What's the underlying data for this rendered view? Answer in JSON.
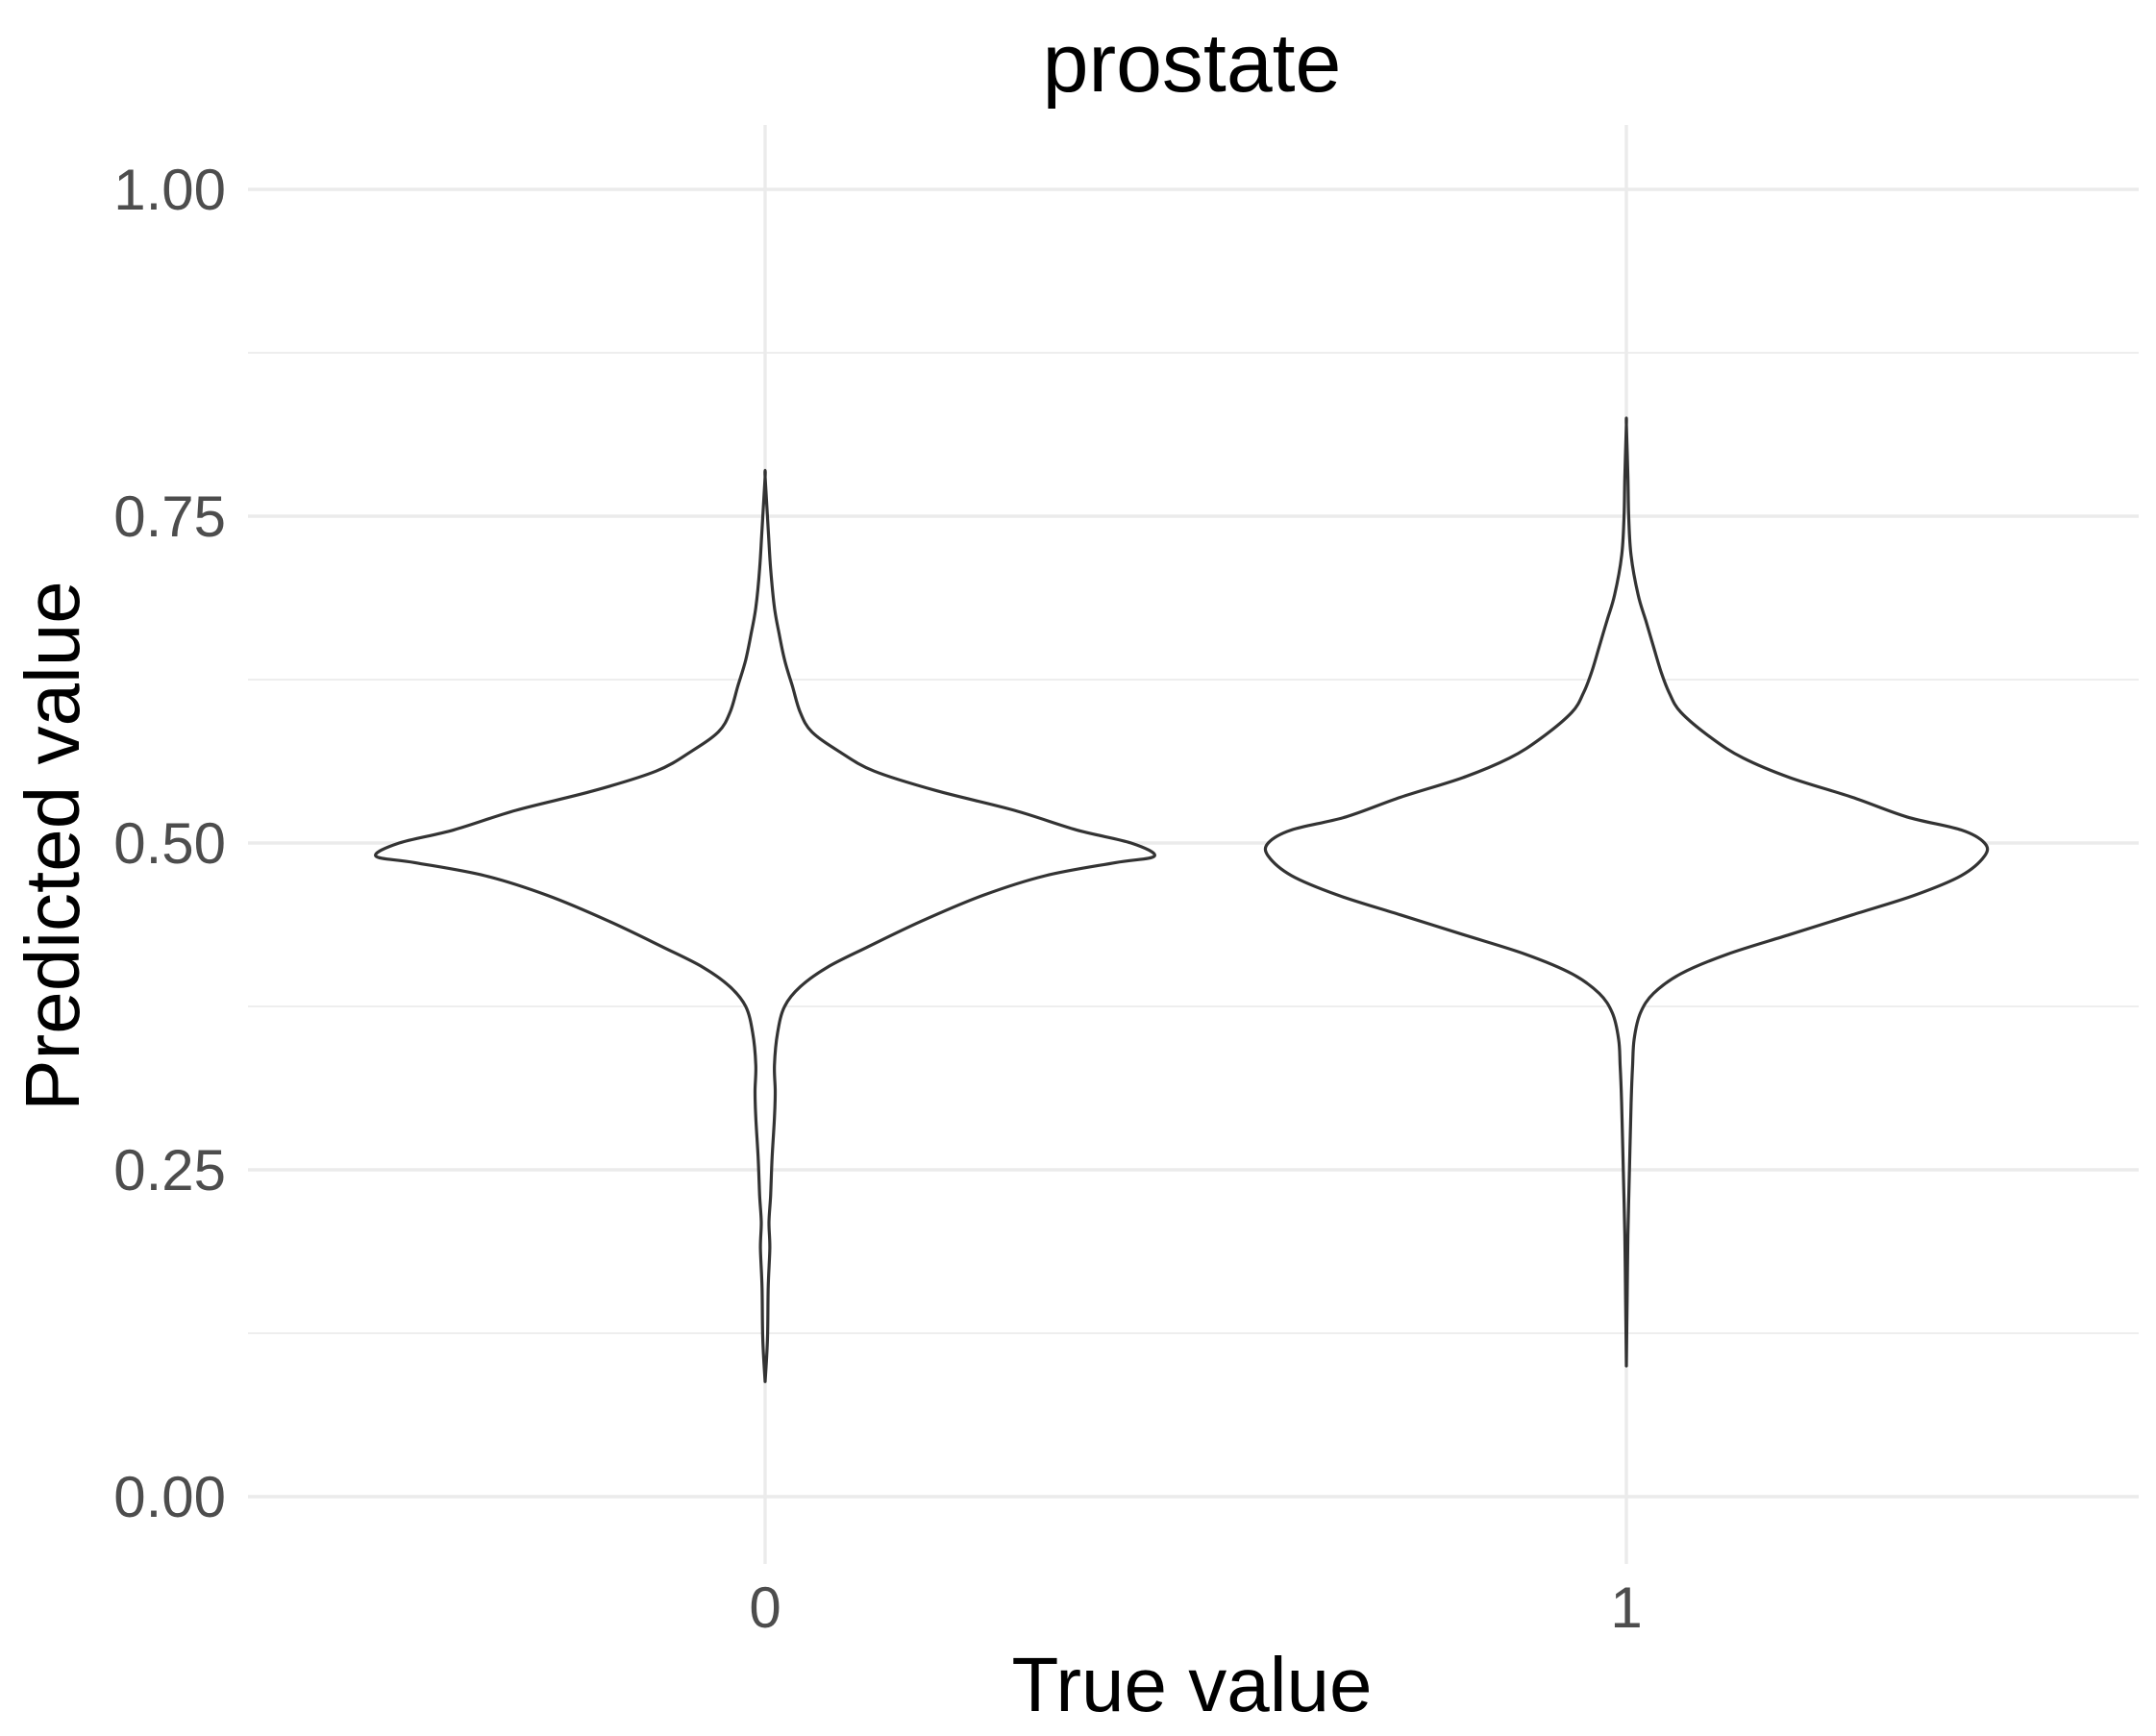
{
  "chart_data": {
    "type": "violin",
    "title": "prostate",
    "xlabel": "True value",
    "ylabel": "Predicted value",
    "categories": [
      "0",
      "1"
    ],
    "ylim": [
      -0.05,
      1.05
    ],
    "y_ticks": [
      0.0,
      0.25,
      0.5,
      0.75,
      1.0
    ],
    "y_tick_labels": [
      "0.00",
      "0.25",
      "0.50",
      "0.75",
      "1.00"
    ],
    "y_minor_ticks": [
      0.125,
      0.375,
      0.625,
      0.875
    ],
    "grid": true,
    "legend": "none",
    "colors": {
      "violin_outline": "#333333",
      "violin_fill": "#ffffff",
      "grid": "#ebebeb",
      "tick_label": "#4d4d4d"
    },
    "series": [
      {
        "category": "0",
        "min": 0.088,
        "max": 0.78,
        "density_profile": [
          [
            0.088,
            0.0
          ],
          [
            0.12,
            0.003
          ],
          [
            0.16,
            0.004
          ],
          [
            0.19,
            0.006
          ],
          [
            0.21,
            0.005
          ],
          [
            0.23,
            0.007
          ],
          [
            0.26,
            0.009
          ],
          [
            0.29,
            0.012
          ],
          [
            0.31,
            0.013
          ],
          [
            0.33,
            0.012
          ],
          [
            0.355,
            0.016
          ],
          [
            0.375,
            0.025
          ],
          [
            0.39,
            0.045
          ],
          [
            0.405,
            0.08
          ],
          [
            0.42,
            0.13
          ],
          [
            0.44,
            0.2
          ],
          [
            0.46,
            0.28
          ],
          [
            0.475,
            0.36
          ],
          [
            0.485,
            0.45
          ],
          [
            0.49,
            0.5
          ],
          [
            0.5,
            0.47
          ],
          [
            0.51,
            0.4
          ],
          [
            0.525,
            0.32
          ],
          [
            0.54,
            0.22
          ],
          [
            0.555,
            0.14
          ],
          [
            0.57,
            0.095
          ],
          [
            0.585,
            0.06
          ],
          [
            0.6,
            0.045
          ],
          [
            0.62,
            0.035
          ],
          [
            0.64,
            0.025
          ],
          [
            0.66,
            0.018
          ],
          [
            0.68,
            0.012
          ],
          [
            0.71,
            0.007
          ],
          [
            0.74,
            0.004
          ],
          [
            0.78,
            0.0
          ]
        ]
      },
      {
        "category": "1",
        "min": 0.1,
        "max": 0.82,
        "density_profile": [
          [
            0.1,
            0.0
          ],
          [
            0.15,
            0.001
          ],
          [
            0.2,
            0.002
          ],
          [
            0.25,
            0.004
          ],
          [
            0.3,
            0.006
          ],
          [
            0.33,
            0.008
          ],
          [
            0.35,
            0.01
          ],
          [
            0.37,
            0.018
          ],
          [
            0.385,
            0.035
          ],
          [
            0.4,
            0.07
          ],
          [
            0.415,
            0.13
          ],
          [
            0.43,
            0.21
          ],
          [
            0.445,
            0.29
          ],
          [
            0.46,
            0.37
          ],
          [
            0.475,
            0.43
          ],
          [
            0.49,
            0.46
          ],
          [
            0.5,
            0.46
          ],
          [
            0.51,
            0.43
          ],
          [
            0.52,
            0.36
          ],
          [
            0.535,
            0.29
          ],
          [
            0.55,
            0.21
          ],
          [
            0.565,
            0.15
          ],
          [
            0.58,
            0.11
          ],
          [
            0.6,
            0.07
          ],
          [
            0.615,
            0.055
          ],
          [
            0.63,
            0.045
          ],
          [
            0.65,
            0.035
          ],
          [
            0.67,
            0.025
          ],
          [
            0.69,
            0.015
          ],
          [
            0.72,
            0.006
          ],
          [
            0.75,
            0.003
          ],
          [
            0.78,
            0.002
          ],
          [
            0.82,
            0.0
          ]
        ]
      }
    ]
  }
}
